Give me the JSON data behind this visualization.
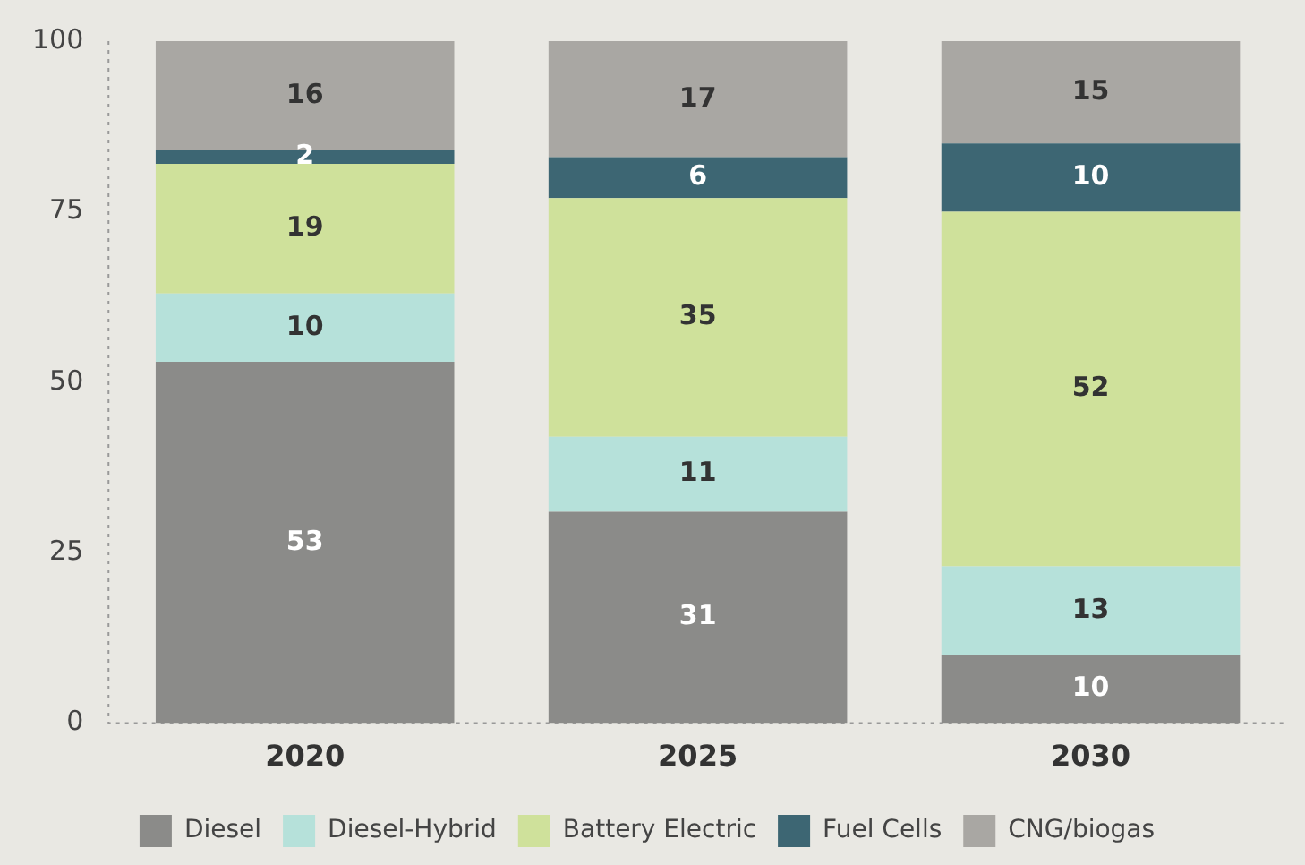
{
  "chart_data": {
    "type": "bar",
    "stacked": true,
    "categories": [
      "2020",
      "2025",
      "2030"
    ],
    "series": [
      {
        "name": "Diesel",
        "color": "#8b8b89",
        "values": [
          53,
          31,
          10
        ]
      },
      {
        "name": "Diesel-Hybrid",
        "color": "#b6e1da",
        "values": [
          10,
          11,
          13
        ]
      },
      {
        "name": "Battery Electric",
        "color": "#cfe19b",
        "values": [
          19,
          35,
          52
        ]
      },
      {
        "name": "Fuel Cells",
        "color": "#3d6673",
        "values": [
          2,
          6,
          10
        ]
      },
      {
        "name": "CNG/biogas",
        "color": "#a9a7a3",
        "values": [
          16,
          17,
          15
        ]
      }
    ],
    "ylim": [
      0,
      100
    ],
    "yticks": [
      0,
      25,
      50,
      75,
      100
    ],
    "grid": false,
    "legend": "bottom",
    "data_labels": true
  }
}
